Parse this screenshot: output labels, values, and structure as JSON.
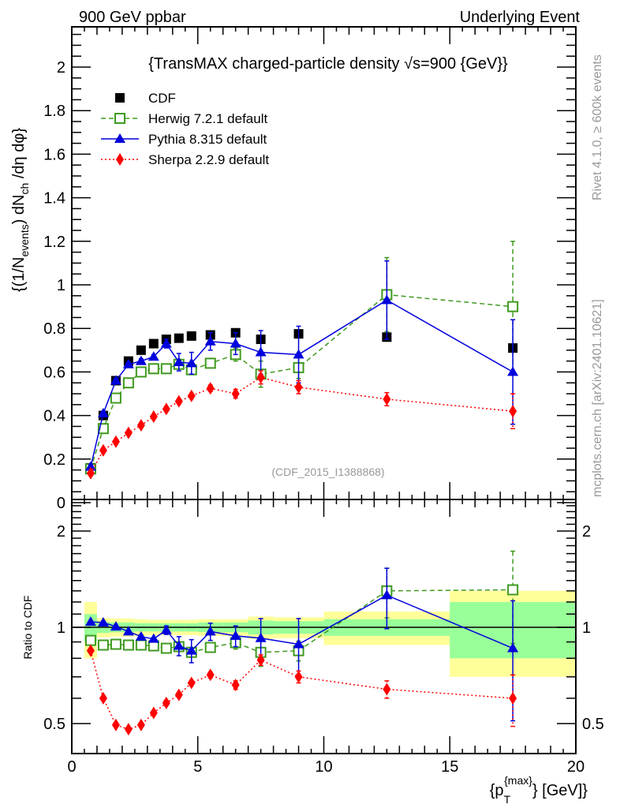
{
  "header": {
    "left_label": "900 GeV ppbar",
    "right_label": "Underlying Event"
  },
  "side_labels": {
    "rivet": "Rivet 4.1.0, ≥ 600k events",
    "mcplots": "mcplots.cern.ch [arXiv:2401.10621]"
  },
  "analysis_id": "(CDF_2015_I1388868)",
  "chart_data": [
    {
      "type": "scatter",
      "title": "{TransMAX charged-particle density √s=900 {GeV}}",
      "xlabel": "{p_T^{max}} [GeV]}",
      "ylabel": "{(1/N_events) dN_ch /dη dφ}",
      "xlim": [
        0,
        20
      ],
      "ylim": [
        0,
        2.2
      ],
      "yticks": [
        "0",
        "0.2",
        "0.4",
        "0.6",
        "0.8",
        "1",
        "1.2",
        "1.4",
        "1.6",
        "1.8",
        "2"
      ],
      "xticks": [
        "0",
        "5",
        "10",
        "15",
        "20"
      ],
      "legend_position": "top-left",
      "x": [
        0.75,
        1.25,
        1.75,
        2.25,
        2.75,
        3.25,
        3.75,
        4.25,
        4.75,
        5.5,
        6.5,
        7.5,
        9,
        12.5,
        17.5
      ],
      "series": [
        {
          "name": "CDF",
          "color": "#000000",
          "marker": "square-filled",
          "line": "none",
          "values": [
            0.16,
            0.4,
            0.56,
            0.65,
            0.7,
            0.73,
            0.75,
            0.755,
            0.765,
            0.77,
            0.78,
            0.75,
            0.775,
            0.76,
            0.71
          ]
        },
        {
          "name": "Herwig 7.2.1 default",
          "color": "#3f9a1f",
          "marker": "square-open",
          "line": "dashed",
          "values": [
            0.155,
            0.34,
            0.48,
            0.55,
            0.6,
            0.615,
            0.615,
            0.635,
            0.61,
            0.64,
            0.68,
            0.59,
            0.62,
            0.955,
            0.9
          ],
          "errors": [
            0.01,
            0.01,
            0.01,
            0.01,
            0.01,
            0.01,
            0.01,
            0.015,
            0.02,
            0.02,
            0.03,
            0.06,
            0.05,
            0.17,
            0.3
          ]
        },
        {
          "name": "Pythia 8.315 default",
          "color": "#0000dd",
          "marker": "triangle-filled",
          "line": "solid",
          "values": [
            0.165,
            0.41,
            0.56,
            0.635,
            0.65,
            0.67,
            0.73,
            0.645,
            0.64,
            0.74,
            0.73,
            0.69,
            0.68,
            0.93,
            0.6
          ],
          "errors": [
            0.01,
            0.01,
            0.01,
            0.01,
            0.01,
            0.01,
            0.02,
            0.04,
            0.05,
            0.04,
            0.05,
            0.1,
            0.13,
            0.18,
            0.24
          ]
        },
        {
          "name": "Sherpa 2.2.9 default",
          "color": "#ff0000",
          "marker": "diamond-filled",
          "line": "dotted",
          "values": [
            0.135,
            0.24,
            0.28,
            0.32,
            0.355,
            0.395,
            0.43,
            0.465,
            0.49,
            0.525,
            0.5,
            0.575,
            0.53,
            0.475,
            0.42
          ],
          "errors": [
            0.005,
            0.005,
            0.005,
            0.005,
            0.005,
            0.005,
            0.01,
            0.01,
            0.01,
            0.015,
            0.02,
            0.03,
            0.03,
            0.03,
            0.08
          ]
        }
      ]
    },
    {
      "type": "scatter",
      "title": "",
      "xlabel": "{p_T^{max}} [GeV]}",
      "ylabel": "Ratio to CDF",
      "yscale": "log",
      "xlim": [
        0,
        20
      ],
      "ylim": [
        0.4,
        2.5
      ],
      "yticks": [
        "0.5",
        "1",
        "2"
      ],
      "xticks": [
        "0",
        "5",
        "10",
        "15",
        "20"
      ],
      "x": [
        0.75,
        1.25,
        1.75,
        2.25,
        2.75,
        3.25,
        3.75,
        4.25,
        4.75,
        5.5,
        6.5,
        7.5,
        9,
        12.5,
        17.5
      ],
      "bands": {
        "bin_edges": [
          0.5,
          1.0,
          1.5,
          2.0,
          2.5,
          3.0,
          3.5,
          4.0,
          4.5,
          5.0,
          6.0,
          7.0,
          8.0,
          10.0,
          15.0,
          20.0
        ],
        "stat_color": "#99ff99",
        "total_color": "#ffff99",
        "stat_half_width": [
          0.1,
          0.04,
          0.035,
          0.035,
          0.03,
          0.03,
          0.03,
          0.03,
          0.03,
          0.035,
          0.035,
          0.05,
          0.045,
          0.06,
          0.2
        ],
        "total_half_width": [
          0.2,
          0.07,
          0.065,
          0.065,
          0.06,
          0.055,
          0.055,
          0.055,
          0.055,
          0.06,
          0.06,
          0.08,
          0.075,
          0.12,
          0.3
        ]
      },
      "series": [
        {
          "name": "Herwig 7.2.1 default",
          "color": "#3f9a1f",
          "values": [
            0.91,
            0.88,
            0.885,
            0.88,
            0.88,
            0.875,
            0.86,
            0.87,
            0.835,
            0.865,
            0.895,
            0.835,
            0.845,
            1.3,
            1.31
          ],
          "errors": [
            0.01,
            0.01,
            0.01,
            0.01,
            0.01,
            0.01,
            0.01,
            0.02,
            0.025,
            0.025,
            0.04,
            0.08,
            0.06,
            0.23,
            0.42
          ]
        },
        {
          "name": "Pythia 8.315 default",
          "color": "#0000dd",
          "values": [
            1.04,
            1.035,
            1.005,
            0.97,
            0.935,
            0.92,
            0.98,
            0.875,
            0.845,
            0.97,
            0.94,
            0.925,
            0.885,
            1.26,
            0.86
          ],
          "errors": [
            0.01,
            0.01,
            0.01,
            0.01,
            0.01,
            0.01,
            0.03,
            0.06,
            0.07,
            0.06,
            0.07,
            0.14,
            0.18,
            0.27,
            0.35
          ]
        },
        {
          "name": "Sherpa 2.2.9 default",
          "color": "#ff0000",
          "values": [
            0.845,
            0.6,
            0.495,
            0.48,
            0.495,
            0.54,
            0.58,
            0.615,
            0.67,
            0.71,
            0.66,
            0.79,
            0.7,
            0.64,
            0.6
          ],
          "errors": [
            0.005,
            0.005,
            0.005,
            0.005,
            0.005,
            0.005,
            0.01,
            0.01,
            0.01,
            0.015,
            0.02,
            0.03,
            0.03,
            0.04,
            0.11
          ]
        }
      ]
    }
  ]
}
